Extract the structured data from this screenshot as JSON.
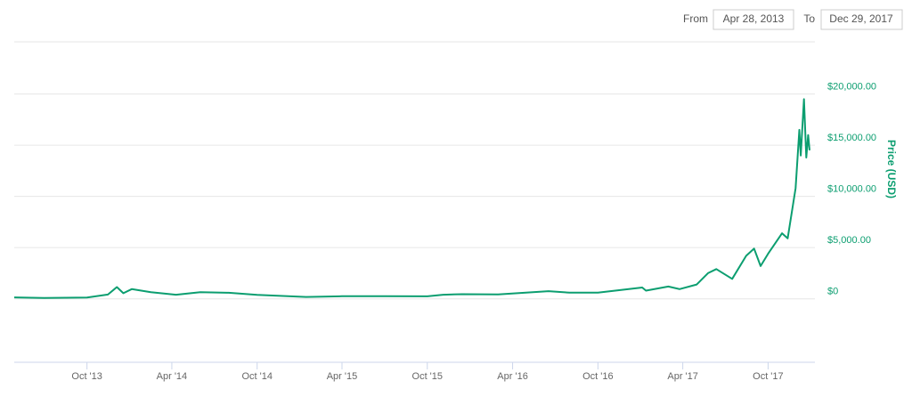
{
  "chart_data": {
    "type": "line",
    "range": {
      "from_label": "From",
      "from": "Apr 28, 2013",
      "to_label": "To",
      "to": "Dec 29, 2017"
    },
    "y_axis_label": "Price (USD)",
    "x": [
      "2013-04-28",
      "2013-07-01",
      "2013-10-01",
      "2013-11-15",
      "2013-12-04",
      "2013-12-18",
      "2014-01-05",
      "2014-02-15",
      "2014-04-10",
      "2014-06-01",
      "2014-08-01",
      "2014-10-01",
      "2015-01-14",
      "2015-04-01",
      "2015-07-01",
      "2015-10-01",
      "2015-11-04",
      "2015-12-15",
      "2016-03-01",
      "2016-06-17",
      "2016-08-01",
      "2016-10-01",
      "2017-01-04",
      "2017-01-12",
      "2017-03-01",
      "2017-03-25",
      "2017-05-01",
      "2017-05-25",
      "2017-06-12",
      "2017-07-16",
      "2017-08-15",
      "2017-09-01",
      "2017-09-15",
      "2017-10-01",
      "2017-10-31",
      "2017-11-12",
      "2017-11-29",
      "2017-12-07",
      "2017-12-10",
      "2017-12-17",
      "2017-12-22",
      "2017-12-26",
      "2017-12-29"
    ],
    "series": [
      {
        "name": "Price",
        "color": "#0c9e70",
        "values": [
          135,
          90,
          130,
          420,
          1150,
          550,
          950,
          650,
          400,
          650,
          590,
          380,
          180,
          250,
          260,
          240,
          400,
          450,
          430,
          750,
          600,
          610,
          1100,
          800,
          1200,
          950,
          1400,
          2500,
          2900,
          1950,
          4200,
          4900,
          3200,
          4400,
          6400,
          5900,
          10800,
          16500,
          14000,
          19500,
          13800,
          16000,
          14500
        ]
      }
    ],
    "xlim": [
      "2013-04-28",
      "2017-12-29"
    ],
    "xticks": [
      {
        "value": "2013-10-01",
        "label": "Oct '13"
      },
      {
        "value": "2014-04-01",
        "label": "Apr '14"
      },
      {
        "value": "2014-10-01",
        "label": "Oct '14"
      },
      {
        "value": "2015-04-01",
        "label": "Apr '15"
      },
      {
        "value": "2015-10-01",
        "label": "Oct '15"
      },
      {
        "value": "2016-04-01",
        "label": "Apr '16"
      },
      {
        "value": "2016-10-01",
        "label": "Oct '16"
      },
      {
        "value": "2017-04-01",
        "label": "Apr '17"
      },
      {
        "value": "2017-10-01",
        "label": "Oct '17"
      }
    ],
    "ylim": [
      -6200,
      25100
    ],
    "yticks": [
      {
        "value": 0,
        "label": "$0"
      },
      {
        "value": 5000,
        "label": "$5,000.00"
      },
      {
        "value": 10000,
        "label": "$10,000.00"
      },
      {
        "value": 15000,
        "label": "$15,000.00"
      },
      {
        "value": 20000,
        "label": "$20,000.00"
      }
    ],
    "grid": true
  }
}
